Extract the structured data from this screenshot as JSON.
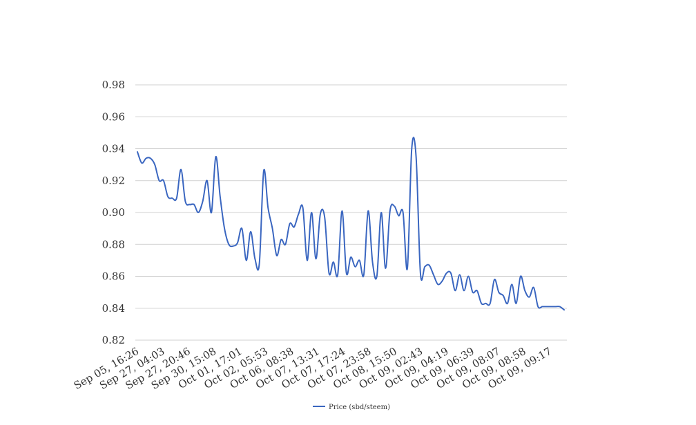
{
  "chart_data": {
    "type": "line",
    "title": "",
    "xlabel": "",
    "ylabel": "",
    "ylim": [
      0.82,
      0.98
    ],
    "yticks": [
      "0.82",
      "0.84",
      "0.86",
      "0.88",
      "0.90",
      "0.92",
      "0.94",
      "0.96",
      "0.98"
    ],
    "grid": true,
    "legend_position": "bottom",
    "x_tick_labels": [
      "Sep 05, 16:26",
      "Sep 27, 04:03",
      "Sep 27, 20:46",
      "Sep 30, 15:08",
      "Oct 01, 17:01",
      "Oct 02, 05:53",
      "Oct 06, 08:38",
      "Oct 07, 13:31",
      "Oct 07, 17:24",
      "Oct 07, 23:58",
      "Oct 08, 15:50",
      "Oct 09, 02:43",
      "Oct 09, 04:19",
      "Oct 09, 06:39",
      "Oct 09, 08:07",
      "Oct 09, 08:58",
      "Oct 09, 09:17"
    ],
    "series": [
      {
        "name": "Price (sbd/steem)",
        "color": "#3a66c0",
        "values": [
          0.938,
          0.931,
          0.934,
          0.934,
          0.93,
          0.92,
          0.92,
          0.91,
          0.909,
          0.909,
          0.927,
          0.907,
          0.905,
          0.905,
          0.9,
          0.907,
          0.92,
          0.9,
          0.935,
          0.91,
          0.89,
          0.88,
          0.879,
          0.881,
          0.89,
          0.87,
          0.888,
          0.871,
          0.868,
          0.926,
          0.903,
          0.89,
          0.873,
          0.883,
          0.88,
          0.893,
          0.891,
          0.899,
          0.903,
          0.87,
          0.9,
          0.871,
          0.899,
          0.897,
          0.862,
          0.869,
          0.861,
          0.901,
          0.862,
          0.872,
          0.866,
          0.87,
          0.861,
          0.901,
          0.869,
          0.86,
          0.9,
          0.865,
          0.901,
          0.904,
          0.898,
          0.9,
          0.865,
          0.94,
          0.935,
          0.862,
          0.866,
          0.867,
          0.861,
          0.855,
          0.857,
          0.862,
          0.862,
          0.851,
          0.861,
          0.851,
          0.86,
          0.85,
          0.851,
          0.843,
          0.843,
          0.843,
          0.858,
          0.85,
          0.848,
          0.843,
          0.855,
          0.843,
          0.86,
          0.851,
          0.847,
          0.853,
          0.841,
          0.841,
          0.841,
          0.841,
          0.841,
          0.841,
          0.839
        ]
      }
    ]
  }
}
